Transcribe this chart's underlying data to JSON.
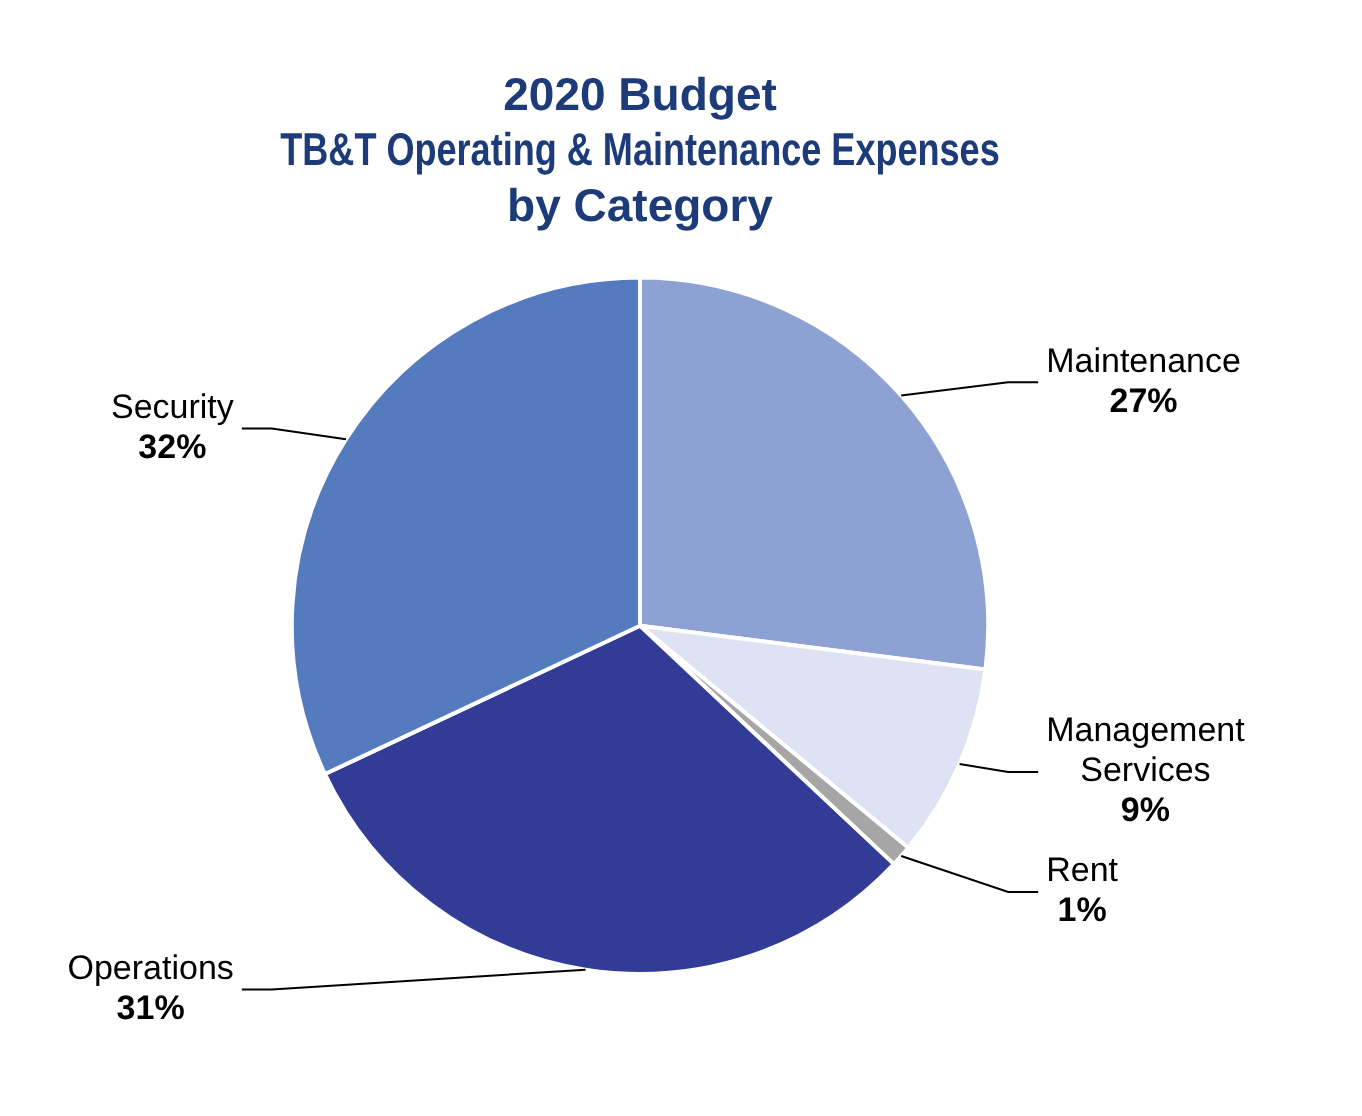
{
  "chart_data": {
    "type": "pie",
    "title": "2020 Budget\nTB&T Operating & Maintenance Expenses\nby Category",
    "categories": [
      "Maintenance",
      "Management Services",
      "Rent",
      "Operations",
      "Security"
    ],
    "values": [
      27,
      9,
      1,
      31,
      32
    ],
    "colors": [
      "#8ea1d3",
      "#dde3f2",
      "#a6a6a6",
      "#323c96",
      "#557bbf"
    ],
    "value_labels": [
      "27%",
      "9%",
      "1%",
      "31%",
      "32%"
    ],
    "legend": false
  }
}
